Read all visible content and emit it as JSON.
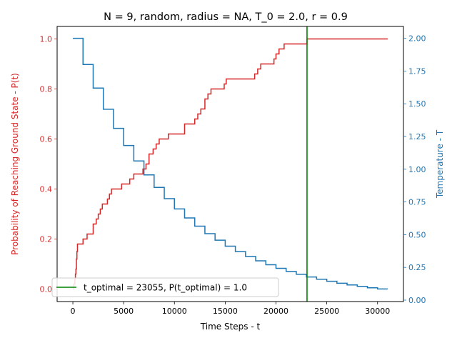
{
  "chart_data": {
    "type": "line",
    "title": "N = 9, random, radius = NA, T_0 = 2.0, r = 0.9",
    "xlabel": "Time Steps - t",
    "ylabel_left": "Probability of Reaching Ground State - P(t)",
    "ylabel_right": "Temperature - T",
    "xlim": [
      -1550,
      32550
    ],
    "ylim_left": [
      -0.05,
      1.05
    ],
    "ylim_right": [
      -0.0109,
      2.0908
    ],
    "xticks": [
      0,
      5000,
      10000,
      15000,
      20000,
      25000,
      30000
    ],
    "xtick_labels": [
      "0",
      "5000",
      "10000",
      "15000",
      "20000",
      "25000",
      "30000"
    ],
    "yticks_left": [
      0.0,
      0.2,
      0.4,
      0.6,
      0.8,
      1.0
    ],
    "ytick_labels_left": [
      "0.0",
      "0.2",
      "0.4",
      "0.6",
      "0.8",
      "1.0"
    ],
    "yticks_right": [
      0.0,
      0.25,
      0.5,
      0.75,
      1.0,
      1.25,
      1.5,
      1.75,
      2.0
    ],
    "ytick_labels_right": [
      "0.00",
      "0.25",
      "0.50",
      "0.75",
      "1.00",
      "1.25",
      "1.50",
      "1.75",
      "2.00"
    ],
    "colors": {
      "probability": "#d62728",
      "temperature": "#1f77b4",
      "optimal": "#008000"
    },
    "series": [
      {
        "name": "P(t)",
        "axis": "left",
        "step": true,
        "x": [
          0,
          100,
          200,
          250,
          300,
          350,
          400,
          450,
          500,
          1000,
          1400,
          2000,
          2300,
          2500,
          2700,
          2900,
          3100,
          3400,
          3600,
          3800,
          4000,
          4800,
          5200,
          5600,
          6000,
          6900,
          7200,
          7500,
          7900,
          8200,
          8500,
          9100,
          9400,
          10000,
          11000,
          12000,
          12300,
          12600,
          13000,
          13300,
          13600,
          13800,
          14900,
          15100,
          15400,
          17900,
          18200,
          18500,
          18800,
          19800,
          20000,
          20300,
          20800,
          23055,
          31000
        ],
        "values": [
          0.0,
          0.02,
          0.04,
          0.06,
          0.08,
          0.12,
          0.15,
          0.18,
          0.18,
          0.2,
          0.22,
          0.26,
          0.28,
          0.3,
          0.32,
          0.34,
          0.34,
          0.36,
          0.38,
          0.4,
          0.4,
          0.42,
          0.42,
          0.44,
          0.46,
          0.48,
          0.5,
          0.54,
          0.56,
          0.58,
          0.6,
          0.6,
          0.62,
          0.62,
          0.66,
          0.68,
          0.7,
          0.72,
          0.76,
          0.78,
          0.8,
          0.8,
          0.82,
          0.84,
          0.84,
          0.86,
          0.88,
          0.9,
          0.9,
          0.92,
          0.94,
          0.96,
          0.98,
          1.0,
          1.0
        ]
      },
      {
        "name": "T",
        "axis": "right",
        "step": true,
        "x": [
          0,
          1000,
          2000,
          3000,
          4000,
          5000,
          6000,
          7000,
          8000,
          9000,
          10000,
          11000,
          12000,
          13000,
          14000,
          15000,
          16000,
          17000,
          18000,
          19000,
          20000,
          21000,
          22000,
          23000,
          24000,
          25000,
          26000,
          27000,
          28000,
          29000,
          30000,
          31000
        ],
        "values": [
          2.0,
          1.8,
          1.62,
          1.458,
          1.312,
          1.181,
          1.063,
          0.957,
          0.861,
          0.775,
          0.697,
          0.628,
          0.565,
          0.508,
          0.458,
          0.412,
          0.371,
          0.334,
          0.3,
          0.27,
          0.243,
          0.219,
          0.197,
          0.177,
          0.16,
          0.144,
          0.129,
          0.116,
          0.105,
          0.094,
          0.085,
          0.085
        ]
      }
    ],
    "vline": {
      "x": 23055,
      "label": "t_optimal = 23055, P(t_optimal) = 1.0"
    },
    "legend_position": "lower-left"
  }
}
